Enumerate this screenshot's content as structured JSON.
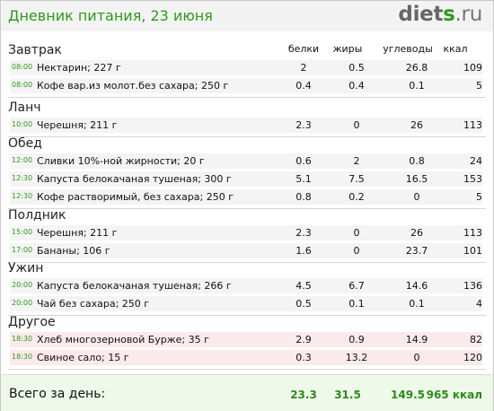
{
  "header": {
    "title": "Дневник питания, 23 июня",
    "logo_part1": "diet",
    "logo_part2": "s",
    "logo_part3": ".ru"
  },
  "columns": {
    "protein": "белки",
    "fat": "жиры",
    "carbs": "углеводы",
    "kcal": "ккал"
  },
  "meals": [
    {
      "name": "Завтрак",
      "items": [
        {
          "time": "08:00",
          "name": "Нектарин; 227 г",
          "protein": "2",
          "fat": "0.5",
          "carbs": "26.8",
          "kcal": "109"
        },
        {
          "time": "08:00",
          "name": "Кофе вар.из молот.без сахара; 250 г",
          "protein": "0.4",
          "fat": "0.4",
          "carbs": "0.1",
          "kcal": "5"
        }
      ]
    },
    {
      "name": "Ланч",
      "items": [
        {
          "time": "10:00",
          "name": "Черешня; 211 г",
          "protein": "2.3",
          "fat": "0",
          "carbs": "26",
          "kcal": "113"
        }
      ]
    },
    {
      "name": "Обед",
      "items": [
        {
          "time": "12:00",
          "name": "Сливки 10%-ной жирности; 20 г",
          "protein": "0.6",
          "fat": "2",
          "carbs": "0.8",
          "kcal": "24"
        },
        {
          "time": "12:30",
          "name": "Капуста белокачаная тушеная; 300 г",
          "protein": "5.1",
          "fat": "7.5",
          "carbs": "16.5",
          "kcal": "153"
        },
        {
          "time": "12:30",
          "name": "Кофе растворимый, без сахара; 250 г",
          "protein": "0.8",
          "fat": "0.2",
          "carbs": "0",
          "kcal": "5"
        }
      ]
    },
    {
      "name": "Полдник",
      "items": [
        {
          "time": "15:00",
          "name": "Черешня; 211 г",
          "protein": "2.3",
          "fat": "0",
          "carbs": "26",
          "kcal": "113"
        },
        {
          "time": "17:00",
          "name": "Бананы; 106 г",
          "protein": "1.6",
          "fat": "0",
          "carbs": "23.7",
          "kcal": "101"
        }
      ]
    },
    {
      "name": "Ужин",
      "items": [
        {
          "time": "20:00",
          "name": "Капуста белокачаная тушеная; 266 г",
          "protein": "4.5",
          "fat": "6.7",
          "carbs": "14.6",
          "kcal": "136"
        },
        {
          "time": "20:00",
          "name": "Чай без сахара; 250 г",
          "protein": "0.5",
          "fat": "0.1",
          "carbs": "0.1",
          "kcal": "4"
        }
      ]
    },
    {
      "name": "Другое",
      "items": [
        {
          "time": "18:30",
          "name": "Хлеб многозерновой Бурже; 35 г",
          "protein": "2.9",
          "fat": "0.9",
          "carbs": "14.9",
          "kcal": "82"
        },
        {
          "time": "18:30",
          "name": "Свиное сало; 15 г",
          "protein": "0.3",
          "fat": "13.2",
          "carbs": "0",
          "kcal": "120"
        }
      ]
    }
  ],
  "totals": {
    "label": "Всего за день:",
    "protein": "23.3",
    "fat": "31.5",
    "carbs": "149.5",
    "kcal": "965 ккал"
  },
  "colors": {
    "accent_green": "#2f9a1c",
    "row_gray": "#f4f4f4",
    "row_pink": "#fbeaea",
    "footer_bg": "#eef9ea"
  }
}
